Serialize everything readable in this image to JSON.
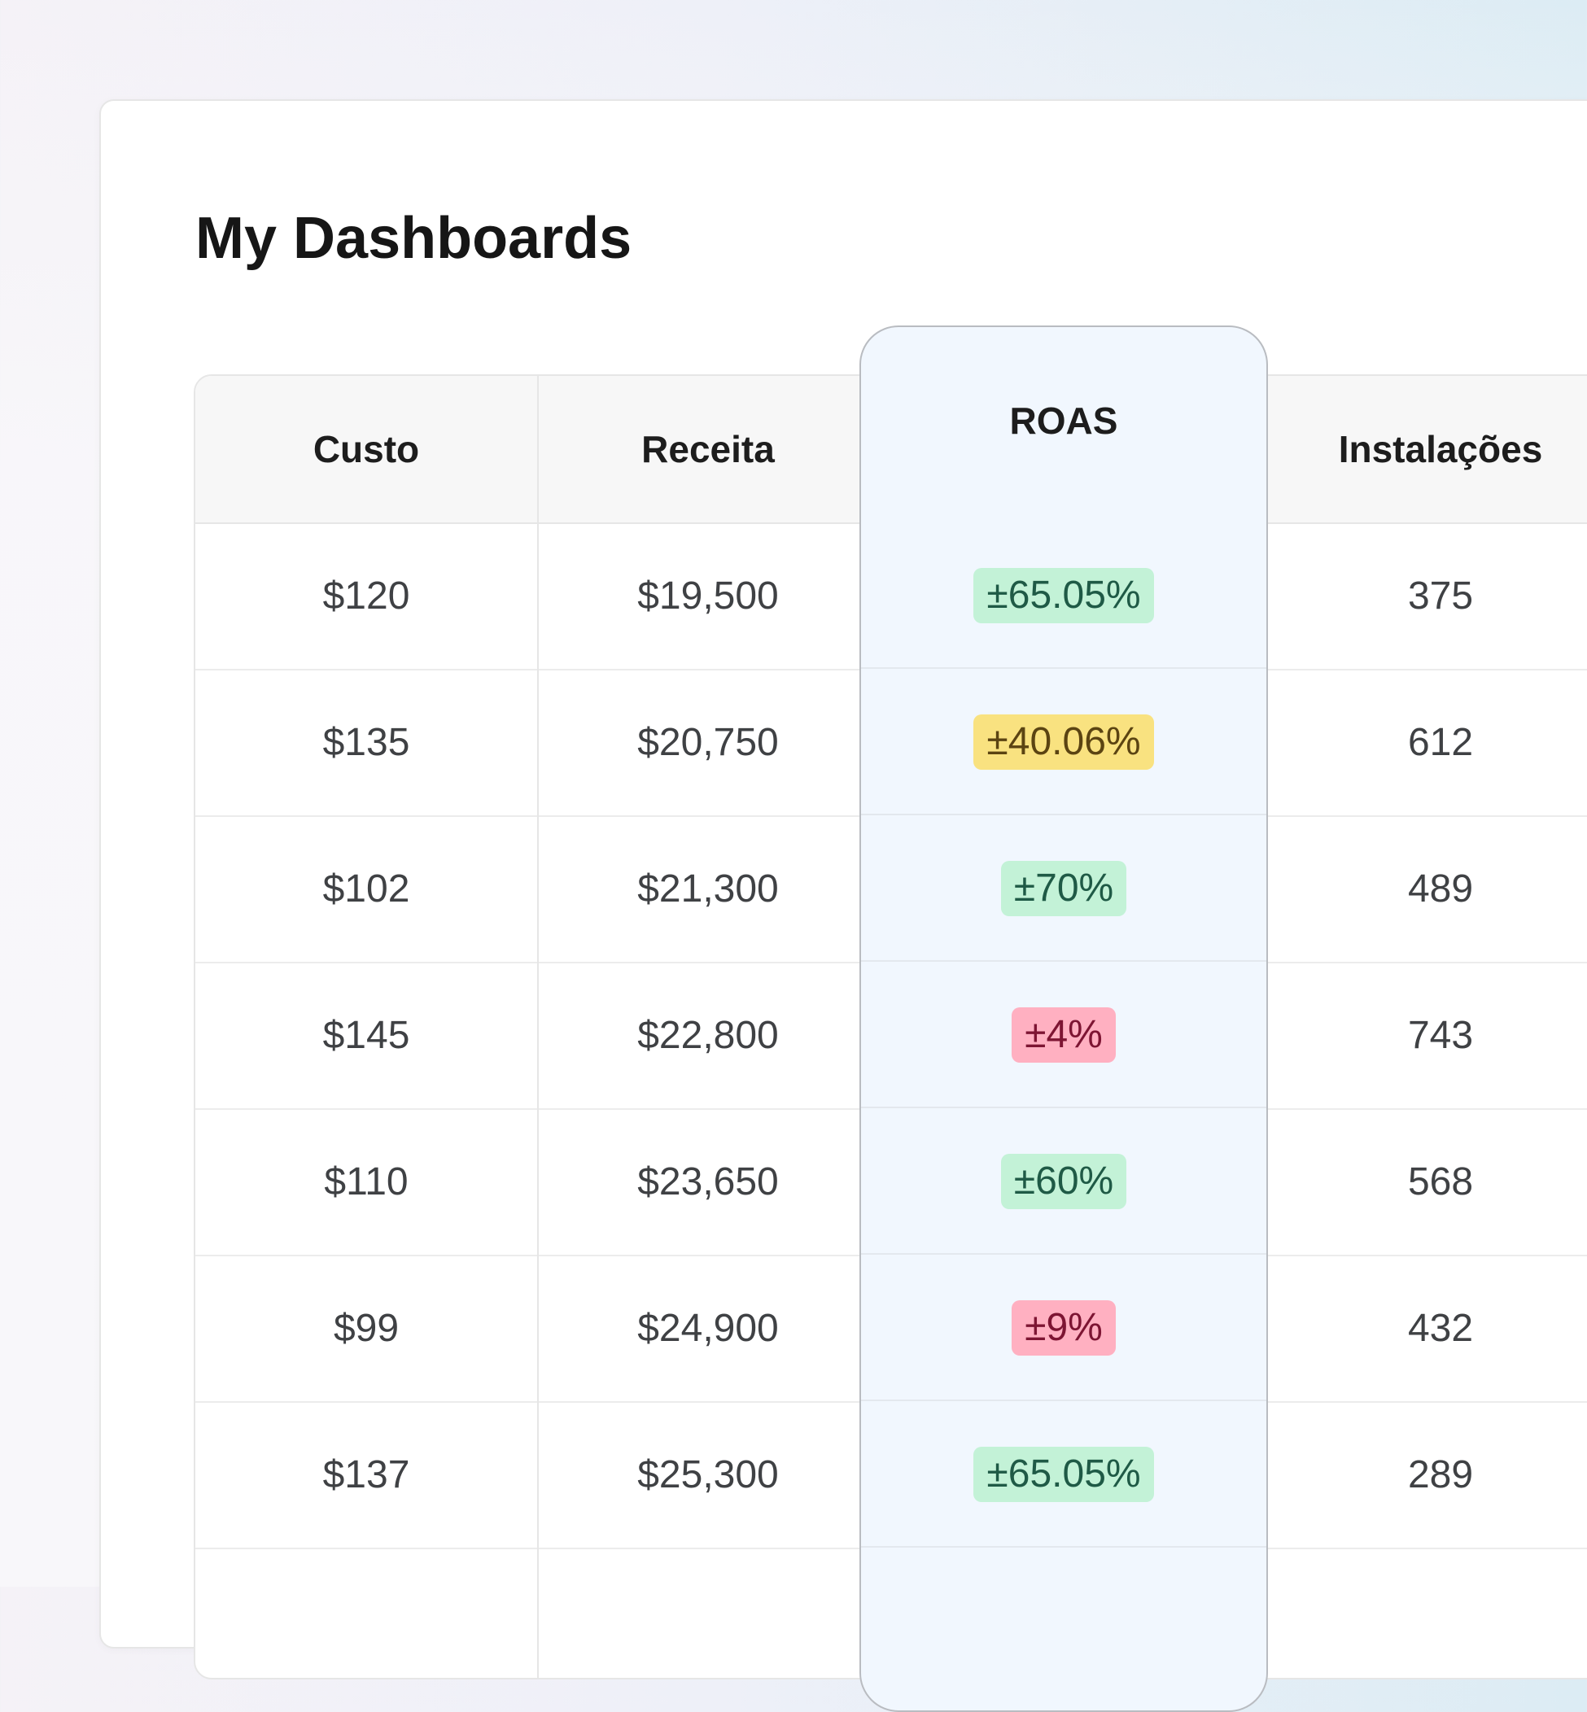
{
  "page": {
    "title": "My Dashboards"
  },
  "table": {
    "columns": [
      "Custo",
      "Receita",
      "ROAS",
      "Instalações"
    ],
    "rows": [
      {
        "custo": "$120",
        "receita": "$19,500",
        "roas": "±65.05%",
        "roas_status": "green",
        "instalacoes": "375"
      },
      {
        "custo": "$135",
        "receita": "$20,750",
        "roas": "±40.06%",
        "roas_status": "yellow",
        "instalacoes": "612"
      },
      {
        "custo": "$102",
        "receita": "$21,300",
        "roas": "±70%",
        "roas_status": "green",
        "instalacoes": "489"
      },
      {
        "custo": "$145",
        "receita": "$22,800",
        "roas": "±4%",
        "roas_status": "red",
        "instalacoes": "743"
      },
      {
        "custo": "$110",
        "receita": "$23,650",
        "roas": "±60%",
        "roas_status": "green",
        "instalacoes": "568"
      },
      {
        "custo": "$99",
        "receita": "$24,900",
        "roas": "±9%",
        "roas_status": "red",
        "instalacoes": "432"
      },
      {
        "custo": "$137",
        "receita": "$25,300",
        "roas": "±65.05%",
        "roas_status": "green",
        "instalacoes": "289"
      }
    ]
  },
  "colors": {
    "highlight_column": "#f1f7fe",
    "badge_green": "#c3f2d7",
    "badge_yellow": "#f9e280",
    "badge_red": "#ffb0c1"
  }
}
